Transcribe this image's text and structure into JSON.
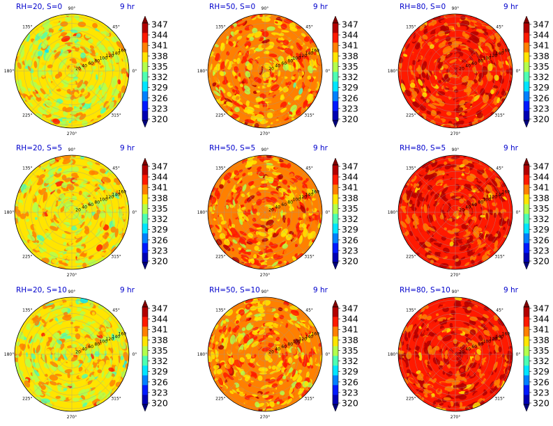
{
  "figure": {
    "time_label": "9 hr",
    "rows": [
      "20",
      "50",
      "80"
    ],
    "cols": [
      "0",
      "5",
      "10"
    ]
  },
  "colorbar": {
    "ticks": [
      "347",
      "344",
      "341",
      "338",
      "335",
      "332",
      "329",
      "326",
      "323",
      "320"
    ],
    "range": [
      320,
      348
    ],
    "colormap": "jet",
    "extend": "both"
  },
  "polar_axes": {
    "angle_labels": [
      "90°",
      "45°",
      "0°",
      "315°",
      "270°",
      "225°",
      "180°",
      "135°"
    ],
    "radial_labels": [
      "20",
      "40",
      "60",
      "80",
      "100",
      "120",
      "140",
      "160"
    ],
    "grid": true
  },
  "chart_data": [
    {
      "type": "heatmap",
      "projection": "polar",
      "title": "RH=20, S=0",
      "annotation": "9 hr",
      "mean_value": 337.5,
      "spread": 3.0,
      "vmin": 320,
      "vmax": 348
    },
    {
      "type": "heatmap",
      "projection": "polar",
      "title": "RH=50, S=0",
      "annotation": "9 hr",
      "mean_value": 340.5,
      "spread": 3.0,
      "vmin": 320,
      "vmax": 348
    },
    {
      "type": "heatmap",
      "projection": "polar",
      "title": "RH=80, S=0",
      "annotation": "9 hr",
      "mean_value": 343.5,
      "spread": 3.0,
      "vmin": 320,
      "vmax": 348
    },
    {
      "type": "heatmap",
      "projection": "polar",
      "title": "RH=20, S=5",
      "annotation": "9 hr",
      "mean_value": 338.0,
      "spread": 2.8,
      "vmin": 320,
      "vmax": 348
    },
    {
      "type": "heatmap",
      "projection": "polar",
      "title": "RH=50, S=5",
      "annotation": "9 hr",
      "mean_value": 341.0,
      "spread": 3.0,
      "vmin": 320,
      "vmax": 348
    },
    {
      "type": "heatmap",
      "projection": "polar",
      "title": "RH=80, S=5",
      "annotation": "9 hr",
      "mean_value": 344.0,
      "spread": 2.8,
      "vmin": 320,
      "vmax": 348
    },
    {
      "type": "heatmap",
      "projection": "polar",
      "title": "RH=20, S=10",
      "annotation": "9 hr",
      "mean_value": 337.5,
      "spread": 3.0,
      "vmin": 320,
      "vmax": 348
    },
    {
      "type": "heatmap",
      "projection": "polar",
      "title": "RH=50, S=10",
      "annotation": "9 hr",
      "mean_value": 340.5,
      "spread": 3.0,
      "vmin": 320,
      "vmax": 348
    },
    {
      "type": "heatmap",
      "projection": "polar",
      "title": "RH=80, S=10",
      "annotation": "9 hr",
      "mean_value": 344.0,
      "spread": 3.0,
      "vmin": 320,
      "vmax": 348
    }
  ]
}
